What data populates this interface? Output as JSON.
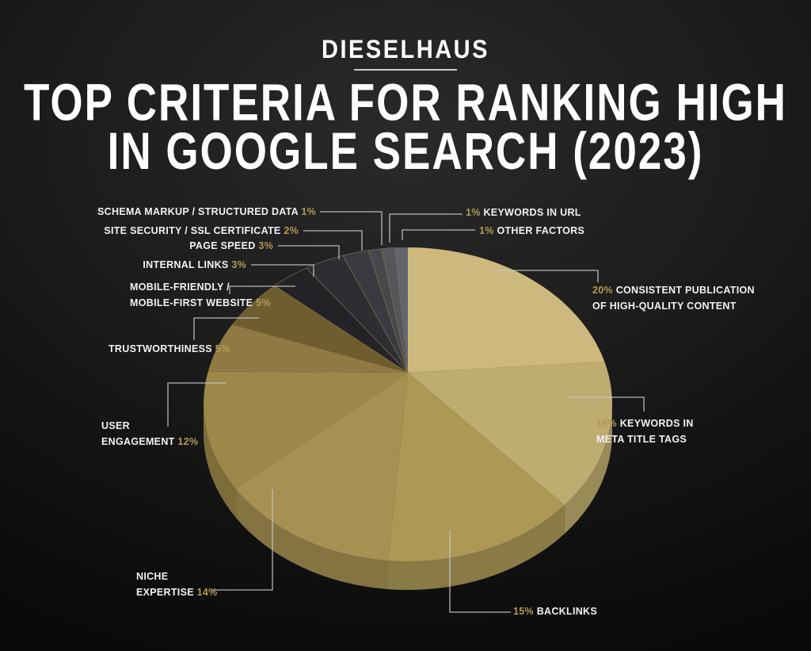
{
  "header": {
    "brand": "DIESELHAUS",
    "title_line1": "TOP CRITERIA FOR RANKING HIGH",
    "title_line2": "IN GOOGLE SEARCH (2023)"
  },
  "colors": {
    "background_center": "#2a2a2a",
    "background_edge": "#0a0a0a",
    "accent_gold": "#b29a55",
    "title_text": "#ffffff",
    "label_text": "#f2f2f2",
    "leader_line": "#c8c8c8",
    "slice_separator": "#8a784a"
  },
  "chart_data": {
    "type": "pie",
    "title": "Top Criteria for Ranking High in Google Search (2023)",
    "unit": "%",
    "legend_position": "around",
    "start_angle_deg": 0,
    "direction": "clockwise",
    "slices": [
      {
        "label": "Consistent publication of high-quality content",
        "label_lines": [
          "CONSISTENT PUBLICATION",
          "OF HIGH-QUALITY CONTENT"
        ],
        "pct": "20%",
        "value": 20,
        "color": "#cdb97e",
        "label_side": "right"
      },
      {
        "label": "Keywords in meta title tags",
        "label_lines": [
          "KEYWORDS IN",
          "META TITLE TAGS"
        ],
        "pct": "15%",
        "value": 15,
        "color": "#bfac71",
        "label_side": "right"
      },
      {
        "label": "Backlinks",
        "label_lines": [
          "BACKLINKS"
        ],
        "pct": "15%",
        "value": 15,
        "color": "#ad9856",
        "label_side": "right"
      },
      {
        "label": "Niche expertise",
        "label_lines": [
          "NICHE",
          "EXPERTISE"
        ],
        "pct": "14%",
        "value": 14,
        "color": "#a69152",
        "label_side": "left"
      },
      {
        "label": "User engagement",
        "label_lines": [
          "USER",
          "ENGAGEMENT"
        ],
        "pct": "12%",
        "value": 12,
        "color": "#9c8849",
        "label_side": "left"
      },
      {
        "label": "Trustworthiness",
        "label_lines": [
          "TRUSTWORTHINESS"
        ],
        "pct": "5%",
        "value": 5,
        "color": "#8e7a42",
        "label_side": "left"
      },
      {
        "label": "Mobile-friendly / mobile-first website",
        "label_lines": [
          "MOBILE-FRIENDLY /",
          "MOBILE-FIRST WEBSITE"
        ],
        "pct": "5%",
        "value": 5,
        "color": "#6f5d30",
        "label_side": "left"
      },
      {
        "label": "Internal links",
        "label_lines": [
          "INTERNAL LINKS"
        ],
        "pct": "3%",
        "value": 3,
        "color": "#232327",
        "label_side": "left"
      },
      {
        "label": "Page speed",
        "label_lines": [
          "PAGE SPEED"
        ],
        "pct": "3%",
        "value": 3,
        "color": "#2d2d32",
        "label_side": "left"
      },
      {
        "label": "Site security / SSL certificate",
        "label_lines": [
          "SITE SECURITY / SSL CERTIFICATE"
        ],
        "pct": "2%",
        "value": 2,
        "color": "#3a3a40",
        "label_side": "left"
      },
      {
        "label": "Schema markup / structured data",
        "label_lines": [
          "SCHEMA MARKUP / STRUCTURED DATA"
        ],
        "pct": "1%",
        "value": 1,
        "color": "#47474d",
        "label_side": "left"
      },
      {
        "label": "Keywords in URL",
        "label_lines": [
          "KEYWORDS IN URL"
        ],
        "pct": "1%",
        "value": 1,
        "color": "#55555c",
        "label_side": "right"
      },
      {
        "label": "Other factors",
        "label_lines": [
          "OTHER FACTORS"
        ],
        "pct": "1%",
        "value": 1,
        "color": "#65656d",
        "label_side": "right"
      }
    ]
  }
}
